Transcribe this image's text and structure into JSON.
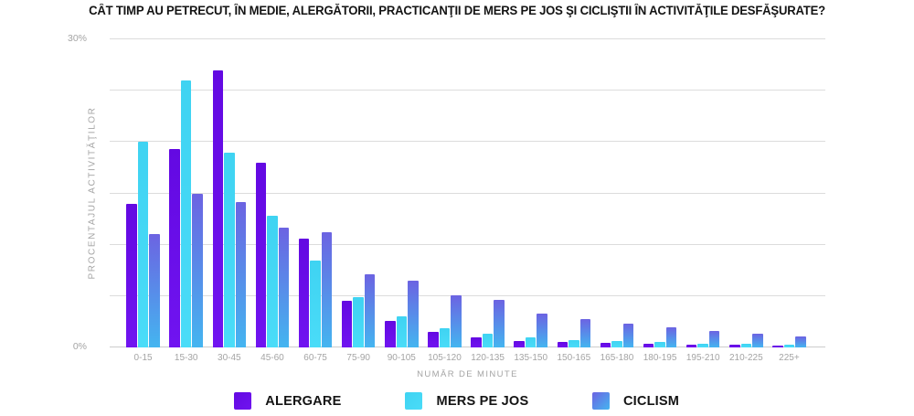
{
  "chart_data": {
    "type": "bar",
    "title": "CÂT TIMP AU PETRECUT, ÎN MEDIE, ALERGĂTORII, PRACTICANŢII DE MERS PE JOS ŞI CICLIŞTII ÎN ACTIVITĂŢILE DESFĂŞURATE?",
    "xlabel": "NUMĂR DE MINUTE",
    "ylabel": "PROCENTAJUL ACTIVITĂŢILOR",
    "ylim": [
      0,
      30
    ],
    "ytick_step": 5,
    "yticks": {
      "top": "30%",
      "bottom": "0%"
    },
    "grid": "horizontal",
    "legend_position": "bottom",
    "categories": [
      "0-15",
      "15-30",
      "30-45",
      "45-60",
      "60-75",
      "75-90",
      "90-105",
      "105-120",
      "120-135",
      "135-150",
      "150-165",
      "165-180",
      "180-195",
      "195-210",
      "210-225",
      "225+"
    ],
    "series": [
      {
        "name": "ALERGARE",
        "color_top": "#6309E2",
        "color_bottom": "#7014F0",
        "values": [
          14,
          19.3,
          27,
          18,
          10.6,
          4.5,
          2.6,
          1.5,
          1.0,
          0.6,
          0.5,
          0.45,
          0.35,
          0.3,
          0.25,
          0.2
        ]
      },
      {
        "name": "MERS PE JOS",
        "color_top": "#3FD3F2",
        "color_bottom": "#4ADCF8",
        "values": [
          20,
          26,
          19,
          12.8,
          8.5,
          4.9,
          3.0,
          1.9,
          1.3,
          1.0,
          0.7,
          0.6,
          0.5,
          0.4,
          0.35,
          0.3
        ]
      },
      {
        "name": "CICLISM",
        "color_top": "#6C63E2",
        "color_bottom": "#44B5F0",
        "values": [
          11,
          15,
          14.2,
          11.7,
          11.2,
          7.1,
          6.5,
          5.1,
          4.6,
          3.3,
          2.8,
          2.3,
          2.0,
          1.6,
          1.3,
          1.05
        ]
      }
    ]
  }
}
